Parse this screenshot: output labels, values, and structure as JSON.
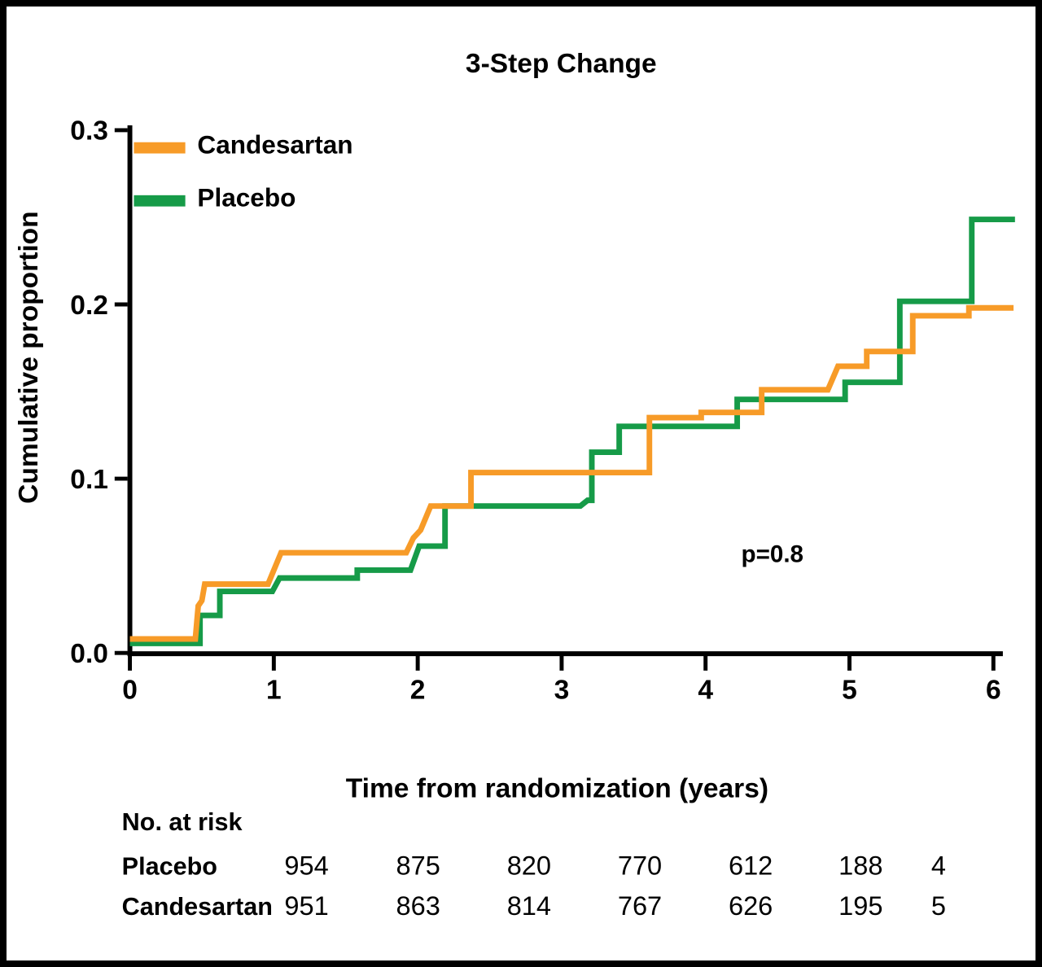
{
  "figure": {
    "title": "3-Step Change",
    "p_value": "p=0.8",
    "x_axis": {
      "label": "Time from randomization (years)",
      "tick_labels": [
        "0",
        "1",
        "2",
        "3",
        "4",
        "5",
        "6"
      ]
    },
    "y_axis": {
      "label": "Cumulative proportion",
      "tick_labels": [
        "0.0",
        "0.1",
        "0.2",
        "0.3"
      ]
    }
  },
  "chart_data": {
    "type": "line",
    "subtype": "step-cumulative-incidence",
    "title": "3-Step Change",
    "xlabel": "Time from randomization (years)",
    "ylabel": "Cumulative proportion",
    "xlim": [
      0,
      6.2
    ],
    "ylim": [
      0,
      0.3
    ],
    "x_ticks": [
      0,
      1,
      2,
      3,
      4,
      5,
      6
    ],
    "y_ticks": [
      0,
      0.1,
      0.2,
      0.3
    ],
    "grid": false,
    "legend_position": "inside-top-left",
    "annotation": {
      "text": "p=0.8",
      "x": 4.47,
      "y": 0.052
    },
    "series": [
      {
        "name": "Candesartan",
        "color": "#F79B28",
        "points": [
          [
            0,
            0.008
          ],
          [
            0.455,
            0.008
          ],
          [
            0.475,
            0.027
          ],
          [
            0.5,
            0.03
          ],
          [
            0.52,
            0.0395
          ],
          [
            0.96,
            0.0395
          ],
          [
            1.05,
            0.0575
          ],
          [
            1.92,
            0.0575
          ],
          [
            1.97,
            0.066
          ],
          [
            2.02,
            0.0705
          ],
          [
            2.09,
            0.0843
          ],
          [
            2.37,
            0.0843
          ],
          [
            2.37,
            0.1035
          ],
          [
            3.61,
            0.1035
          ],
          [
            3.61,
            0.135
          ],
          [
            3.97,
            0.135
          ],
          [
            3.97,
            0.138
          ],
          [
            4.39,
            0.138
          ],
          [
            4.39,
            0.151
          ],
          [
            4.85,
            0.151
          ],
          [
            4.92,
            0.1645
          ],
          [
            5.12,
            0.1645
          ],
          [
            5.12,
            0.173
          ],
          [
            5.44,
            0.173
          ],
          [
            5.44,
            0.1935
          ],
          [
            5.83,
            0.1935
          ],
          [
            5.83,
            0.198
          ],
          [
            6.14,
            0.198
          ]
        ]
      },
      {
        "name": "Placebo",
        "color": "#169B48",
        "points": [
          [
            0,
            0.0055
          ],
          [
            0.487,
            0.0055
          ],
          [
            0.487,
            0.0215
          ],
          [
            0.625,
            0.0215
          ],
          [
            0.625,
            0.0353
          ],
          [
            0.99,
            0.0353
          ],
          [
            1.04,
            0.043
          ],
          [
            1.58,
            0.043
          ],
          [
            1.58,
            0.0475
          ],
          [
            1.95,
            0.0475
          ],
          [
            2.01,
            0.0613
          ],
          [
            2.19,
            0.0613
          ],
          [
            2.19,
            0.0843
          ],
          [
            3.13,
            0.0843
          ],
          [
            3.18,
            0.0876
          ],
          [
            3.21,
            0.0876
          ],
          [
            3.21,
            0.1152
          ],
          [
            3.4,
            0.1152
          ],
          [
            3.4,
            0.13
          ],
          [
            4.22,
            0.13
          ],
          [
            4.22,
            0.1455
          ],
          [
            4.97,
            0.1455
          ],
          [
            4.97,
            0.1553
          ],
          [
            5.35,
            0.1553
          ],
          [
            5.35,
            0.2018
          ],
          [
            5.85,
            0.2018
          ],
          [
            5.85,
            0.2488
          ],
          [
            6.15,
            0.2488
          ]
        ]
      }
    ]
  },
  "at_risk_table": {
    "header": "No. at risk",
    "rows": [
      {
        "label": "Placebo",
        "values": [
          "954",
          "875",
          "820",
          "770",
          "612",
          "188",
          "4"
        ]
      },
      {
        "label": "Candesartan",
        "values": [
          "951",
          "863",
          "814",
          "767",
          "626",
          "195",
          "5"
        ]
      }
    ]
  }
}
